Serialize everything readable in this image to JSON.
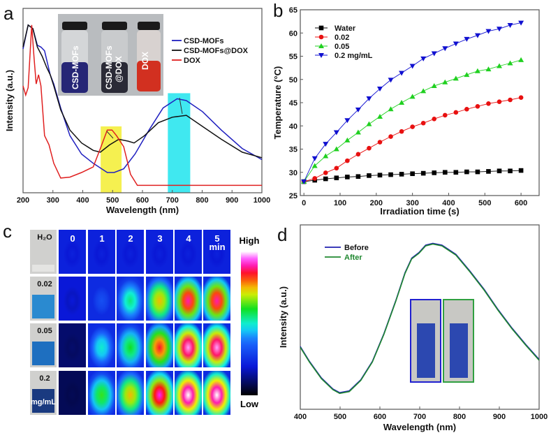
{
  "panels": {
    "a": "a",
    "b": "b",
    "c": "c",
    "d": "d"
  },
  "chart_data": [
    {
      "panel": "a",
      "type": "line",
      "xlabel": "Wavelength (nm)",
      "ylabel": "Intensity (a.u.)",
      "xlim": [
        200,
        1000
      ],
      "ylim": [
        0,
        1
      ],
      "xticks": [
        200,
        300,
        400,
        500,
        600,
        700,
        800,
        900,
        1000
      ],
      "legend": "top-right",
      "series": [
        {
          "name": "CSD-MOFs",
          "color": "#2020c0",
          "x": [
            200,
            217,
            233,
            248,
            260,
            272,
            291,
            303,
            326,
            357,
            396,
            435,
            482,
            505,
            537,
            575,
            622,
            669,
            716,
            747,
            801,
            864,
            934,
            1000
          ],
          "y": [
            0.78,
            0.91,
            0.89,
            0.8,
            0.79,
            0.77,
            0.64,
            0.59,
            0.46,
            0.31,
            0.21,
            0.16,
            0.11,
            0.11,
            0.13,
            0.21,
            0.34,
            0.46,
            0.51,
            0.5,
            0.44,
            0.34,
            0.24,
            0.18
          ]
        },
        {
          "name": "CSD-MOFs@DOX",
          "color": "#111111",
          "x": [
            200,
            217,
            233,
            248,
            264,
            279,
            291,
            303,
            326,
            357,
            396,
            435,
            459,
            490,
            521,
            552,
            572,
            607,
            653,
            700,
            747,
            801,
            864,
            934,
            1000
          ],
          "y": [
            0.79,
            0.91,
            0.89,
            0.79,
            0.74,
            0.68,
            0.64,
            0.58,
            0.45,
            0.34,
            0.27,
            0.23,
            0.22,
            0.26,
            0.29,
            0.28,
            0.27,
            0.31,
            0.38,
            0.41,
            0.42,
            0.36,
            0.29,
            0.22,
            0.19
          ]
        },
        {
          "name": "DOX",
          "color": "#e02020",
          "x": [
            200,
            209,
            217,
            229,
            237,
            244,
            252,
            260,
            272,
            287,
            303,
            326,
            357,
            396,
            435,
            459,
            482,
            498,
            513,
            537,
            560,
            583,
            630,
            1000
          ],
          "y": [
            0.58,
            0.53,
            0.57,
            0.91,
            0.73,
            0.59,
            0.64,
            0.58,
            0.31,
            0.26,
            0.16,
            0.08,
            0.085,
            0.11,
            0.14,
            0.24,
            0.34,
            0.34,
            0.31,
            0.25,
            0.1,
            0.04,
            0.04,
            0.04
          ]
        }
      ],
      "highlight_bands": [
        {
          "range": [
            460,
            530
          ],
          "color": "#f5f050"
        },
        {
          "range": [
            685,
            760
          ],
          "color": "#40e8f0"
        }
      ],
      "inset_photo_labels": [
        "CSD-MOFs",
        "CSD-MOFs @DOX",
        "DOX"
      ]
    },
    {
      "panel": "b",
      "type": "line",
      "xlabel": "Irradiation time (s)",
      "ylabel": "Temperature (°C)",
      "xlim": [
        -10,
        650
      ],
      "ylim": [
        25,
        65
      ],
      "xticks": [
        0,
        100,
        200,
        300,
        400,
        500,
        600
      ],
      "yticks": [
        25,
        30,
        35,
        40,
        45,
        50,
        55,
        60,
        65
      ],
      "legend": "top-left",
      "x": [
        0,
        30,
        60,
        90,
        120,
        150,
        180,
        210,
        240,
        270,
        300,
        330,
        360,
        390,
        420,
        450,
        480,
        510,
        540,
        570,
        600
      ],
      "series": [
        {
          "name": "Water",
          "color": "#000000",
          "marker": "square",
          "values": [
            28,
            28.3,
            28.6,
            28.8,
            29,
            29.1,
            29.3,
            29.4,
            29.5,
            29.6,
            29.7,
            29.8,
            29.9,
            30,
            30,
            30.1,
            30.1,
            30.2,
            30.3,
            30.3,
            30.4
          ]
        },
        {
          "name": "0.02",
          "color": "#e81010",
          "marker": "circle",
          "values": [
            28,
            28.7,
            29.9,
            30.9,
            32.5,
            33.9,
            35.2,
            36.5,
            37.7,
            38.8,
            39.8,
            40.6,
            41.5,
            42.3,
            42.9,
            43.6,
            44.2,
            44.8,
            45.2,
            45.6,
            46.1
          ]
        },
        {
          "name": "0.05",
          "color": "#20d020",
          "marker": "triangle-up",
          "values": [
            28,
            31.4,
            33.5,
            35,
            36.9,
            38.6,
            40.4,
            42,
            43.6,
            45,
            46.3,
            47.5,
            48.6,
            49.4,
            50.2,
            51,
            51.8,
            52.2,
            52.9,
            53.5,
            54.2
          ]
        },
        {
          "name": "0.2 mg/mL",
          "color": "#1010d0",
          "marker": "triangle-down",
          "values": [
            28,
            33,
            36.1,
            38.6,
            41.2,
            43.5,
            45.9,
            48,
            49.9,
            51.4,
            52.9,
            54.5,
            55.6,
            56.7,
            57.7,
            58.7,
            59.5,
            60.4,
            60.9,
            61.7,
            62.2
          ]
        }
      ]
    },
    {
      "panel": "c",
      "type": "heatmap",
      "column_labels": [
        "0",
        "1",
        "2",
        "3",
        "4",
        "5"
      ],
      "column_unit": "min",
      "row_labels": [
        "H₂O",
        "0.02",
        "0.05",
        "0.2"
      ],
      "row_unit": "mg/mL",
      "colorbar_high": "High",
      "colorbar_low": "Low",
      "relative_levels": [
        [
          0.22,
          0.22,
          0.22,
          0.22,
          0.22,
          0.22
        ],
        [
          0.2,
          0.32,
          0.55,
          0.75,
          0.9,
          0.9
        ],
        [
          0.1,
          0.5,
          0.6,
          0.85,
          0.97,
          0.97
        ],
        [
          0.08,
          0.62,
          0.75,
          0.93,
          1.0,
          1.0
        ]
      ]
    },
    {
      "panel": "d",
      "type": "line",
      "xlabel": "Wavelength (nm)",
      "ylabel": "Intensity (a.u.)",
      "xlim": [
        400,
        1000
      ],
      "ylim": [
        0,
        1
      ],
      "xticks": [
        400,
        500,
        600,
        700,
        800,
        900,
        1000
      ],
      "legend": "top-left",
      "series": [
        {
          "name": "Before",
          "color": "#2020b0",
          "x": [
            400,
            423,
            453,
            482,
            499,
            523,
            552,
            581,
            610,
            640,
            663,
            680,
            698,
            715,
            733,
            756,
            791,
            826,
            862,
            897,
            932,
            967,
            1000
          ],
          "y": [
            0.34,
            0.26,
            0.17,
            0.11,
            0.09,
            0.1,
            0.16,
            0.26,
            0.41,
            0.59,
            0.74,
            0.82,
            0.85,
            0.89,
            0.9,
            0.89,
            0.84,
            0.75,
            0.65,
            0.54,
            0.44,
            0.35,
            0.27
          ]
        },
        {
          "name": "After",
          "color": "#208830",
          "x": [
            400,
            423,
            453,
            482,
            499,
            523,
            552,
            581,
            610,
            640,
            663,
            680,
            698,
            715,
            733,
            756,
            791,
            826,
            862,
            897,
            932,
            967,
            1000
          ],
          "y": [
            0.34,
            0.26,
            0.17,
            0.11,
            0.09,
            0.1,
            0.16,
            0.26,
            0.41,
            0.59,
            0.74,
            0.82,
            0.85,
            0.89,
            0.9,
            0.89,
            0.84,
            0.75,
            0.65,
            0.54,
            0.44,
            0.35,
            0.27
          ]
        }
      ]
    }
  ]
}
